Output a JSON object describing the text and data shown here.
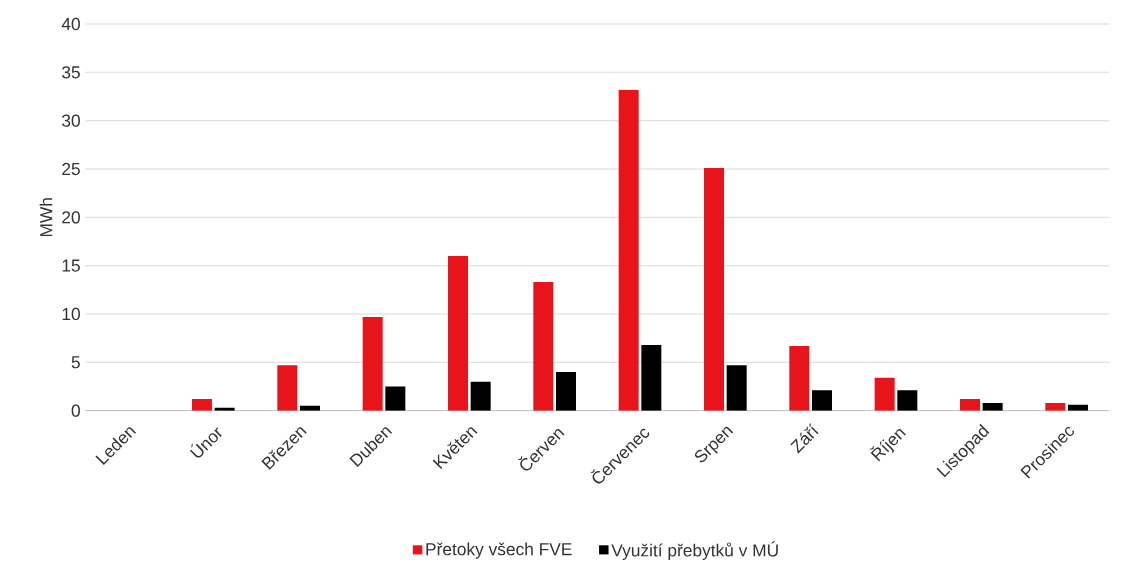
{
  "chart_data": {
    "type": "bar",
    "ylabel": "MWh",
    "categories": [
      "Leden",
      "Únor",
      "Březen",
      "Duben",
      "Květen",
      "Červen",
      "Červenec",
      "Srpen",
      "Září",
      "Říjen",
      "Listopad",
      "Prosinec"
    ],
    "series": [
      {
        "name": "Přetoky všech FVE",
        "color": "#e8141b",
        "values": [
          0,
          1.2,
          4.7,
          9.7,
          16.0,
          13.3,
          33.2,
          25.1,
          6.7,
          3.4,
          1.2,
          0.8
        ]
      },
      {
        "name": "Využití přebytků v MÚ",
        "color": "#000000",
        "values": [
          0,
          0.3,
          0.5,
          2.5,
          3.0,
          4.0,
          6.8,
          4.7,
          2.1,
          2.1,
          0.8,
          0.6
        ]
      }
    ],
    "ylim": [
      0,
      40
    ],
    "yticks": [
      0,
      5,
      10,
      15,
      20,
      25,
      30,
      35,
      40
    ],
    "grid": "y",
    "legend": "bottom"
  }
}
